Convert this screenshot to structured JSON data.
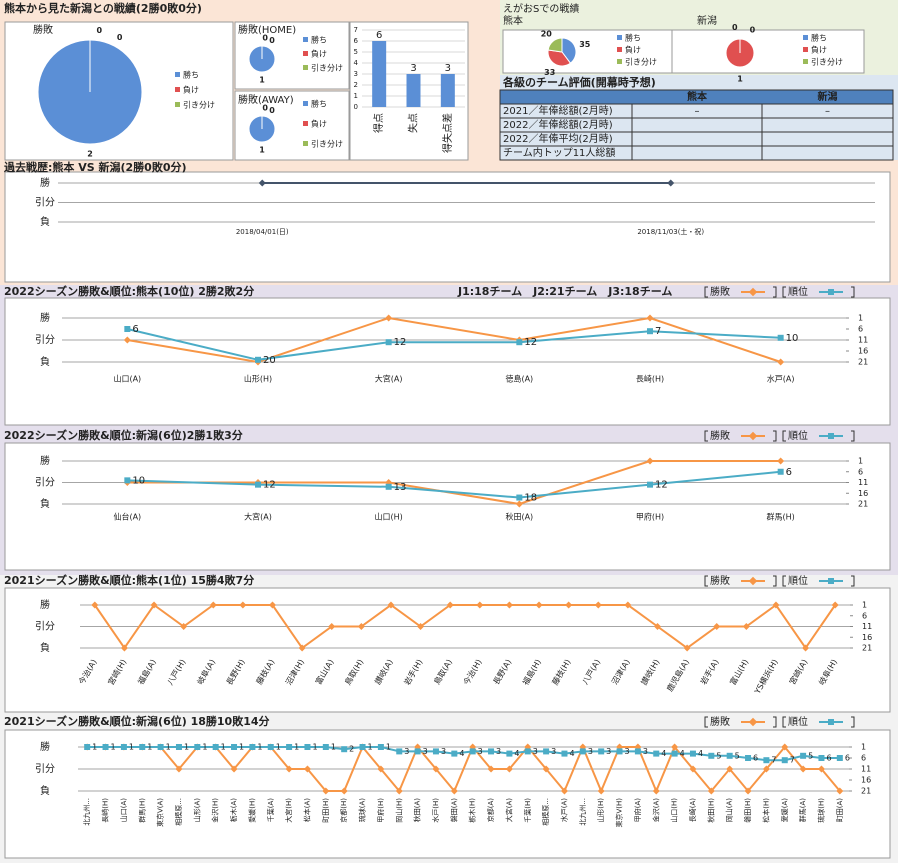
{
  "section_titles": {
    "record": "熊本から見た新潟との戦績(2勝0敗0分)",
    "egao": "えがおSでの戦績"
  },
  "table": {
    "title": "各級のチーム評価(開幕時予想)",
    "columns": [
      "熊本",
      "新潟"
    ],
    "rows": [
      [
        "2021／年俸総額(2月時)",
        "–",
        "–"
      ],
      [
        "2022／年俸総額(2月時)"
      ],
      [
        "2022／年俸平均(2月時)"
      ],
      [
        "チーム内トップ11人総額"
      ]
    ]
  },
  "chart_data": [
    {
      "type": "pie",
      "title": "勝敗",
      "categories": [
        "勝ち",
        "負け",
        "引き分け"
      ],
      "values": [
        2,
        0,
        0
      ],
      "colors": [
        "#5b8fd6",
        "#e05050",
        "#9bbb59"
      ]
    },
    {
      "type": "pie",
      "title": "勝敗(HOME)",
      "categories": [
        "勝ち",
        "負け",
        "引き分け"
      ],
      "values": [
        1,
        0,
        0
      ],
      "colors": [
        "#5b8fd6",
        "#e05050",
        "#9bbb59"
      ]
    },
    {
      "type": "pie",
      "title": "勝敗(AWAY)",
      "categories": [
        "勝ち",
        "負け",
        "引き分け"
      ],
      "values": [
        1,
        0,
        0
      ],
      "colors": [
        "#5b8fd6",
        "#e05050",
        "#9bbb59"
      ]
    },
    {
      "type": "bar",
      "categories": [
        "得点",
        "失点",
        "得失点差"
      ],
      "values": [
        6,
        3,
        3
      ],
      "color": "#5b8fd6",
      "ylim": [
        0,
        7
      ],
      "yticks": [
        0,
        1,
        2,
        3,
        4,
        5,
        6,
        7
      ],
      "grid": true
    },
    {
      "type": "pie",
      "title": "熊本",
      "categories": [
        "勝ち",
        "負け",
        "引き分け"
      ],
      "values": [
        35,
        33,
        20
      ],
      "colors": [
        "#5b8fd6",
        "#e05050",
        "#9bbb59"
      ]
    },
    {
      "type": "pie",
      "title": "新潟",
      "categories": [
        "勝ち",
        "負け",
        "引き分け"
      ],
      "values": [
        0,
        1,
        0
      ],
      "colors": [
        "#5b8fd6",
        "#e05050",
        "#9bbb59"
      ]
    },
    {
      "type": "line",
      "title": "過去戦歴:熊本 VS 新潟(2勝0敗0分)",
      "categories": [
        "2018/04/01(日)",
        "2018/11/03(土・祝)"
      ],
      "ylim": [
        -1,
        1
      ],
      "yticks": [
        {
          "value": 1,
          "label": "勝"
        },
        {
          "value": 0,
          "label": "引分"
        },
        {
          "value": -1,
          "label": "負"
        }
      ],
      "series": [
        {
          "color": "#44546a",
          "values": [
            1,
            1
          ]
        }
      ]
    },
    {
      "type": "line",
      "title": "2022シーズン勝敗&順位:熊本(10位) 2勝2敗2分",
      "note": "J1:18チーム　J2:21チーム　J3:18チーム",
      "categories": [
        "山口(A)",
        "山形(H)",
        "大宮(A)",
        "徳島(A)",
        "長崎(H)",
        "水戸(A)"
      ],
      "ylim": [
        -1,
        1
      ],
      "yticks": [
        {
          "value": 1,
          "label": "勝"
        },
        {
          "value": 0,
          "label": "引分"
        },
        {
          "value": -1,
          "label": "負"
        }
      ],
      "y2lim": [
        21,
        1
      ],
      "y2ticks": [
        1,
        6,
        11,
        16,
        21
      ],
      "series": [
        {
          "name": "勝敗",
          "color": "#f79646",
          "values": [
            0,
            -1,
            1,
            0,
            1,
            -1
          ]
        },
        {
          "name": "順位",
          "color": "#4bacc6",
          "axis": "y2",
          "values": [
            6,
            20,
            12,
            12,
            7,
            10
          ]
        }
      ]
    },
    {
      "type": "line",
      "title": "2022シーズン勝敗&順位:新潟(6位)2勝1敗3分",
      "categories": [
        "仙台(A)",
        "大宮(A)",
        "山口(H)",
        "秋田(A)",
        "甲府(H)",
        "群馬(H)"
      ],
      "ylim": [
        -1,
        1
      ],
      "yticks": [
        {
          "value": 1,
          "label": "勝"
        },
        {
          "value": 0,
          "label": "引分"
        },
        {
          "value": -1,
          "label": "負"
        }
      ],
      "y2lim": [
        21,
        1
      ],
      "y2ticks": [
        1,
        6,
        11,
        16,
        21
      ],
      "series": [
        {
          "name": "勝敗",
          "color": "#f79646",
          "values": [
            0,
            0,
            0,
            -1,
            1,
            1
          ]
        },
        {
          "name": "順位",
          "color": "#4bacc6",
          "axis": "y2",
          "values": [
            10,
            12,
            13,
            18,
            12,
            6
          ]
        }
      ]
    },
    {
      "type": "line",
      "title": "2021シーズン勝敗&順位:熊本(1位) 15勝4敗7分",
      "categories": [
        "今治(A)",
        "宮崎(H)",
        "福島(A)",
        "八戸(H)",
        "岐阜(A)",
        "長野(H)",
        "藤枝(A)",
        "沼津(H)",
        "富山(A)",
        "鳥取(H)",
        "讃岐(A)",
        "岩手(H)",
        "鳥取(A)",
        "今治(H)",
        "長野(A)",
        "福島(H)",
        "藤枝(H)",
        "八戸(A)",
        "沼津(A)",
        "讃岐(H)",
        "鹿児島(A)",
        "岩手(A)",
        "富山(H)",
        "YS横浜(H)",
        "宮崎(A)",
        "岐阜(H)"
      ],
      "ylim": [
        -1,
        1
      ],
      "yticks": [
        {
          "value": 1,
          "label": "勝"
        },
        {
          "value": 0,
          "label": "引分"
        },
        {
          "value": -1,
          "label": "負"
        }
      ],
      "y2lim": [
        21,
        1
      ],
      "y2ticks": [
        1,
        6,
        11,
        16,
        21
      ],
      "series": [
        {
          "name": "勝敗",
          "color": "#f79646",
          "values": [
            1,
            -1,
            1,
            0,
            1,
            1,
            1,
            -1,
            0,
            0,
            1,
            0,
            1,
            1,
            1,
            1,
            1,
            1,
            1,
            0,
            -1,
            0,
            0,
            1,
            -1,
            1
          ]
        },
        {
          "name": "順位",
          "color": "#4bacc6",
          "axis": "y2",
          "values": [
            null,
            null,
            null,
            null,
            null,
            null,
            null,
            null,
            null,
            null,
            null,
            null,
            null,
            null,
            null,
            null,
            null,
            null,
            null,
            null,
            null,
            null,
            null,
            null,
            null,
            null
          ]
        }
      ]
    },
    {
      "type": "line",
      "title": "2021シーズン勝敗&順位:新潟(6位) 18勝10敗14分",
      "categories": [
        "北九州...",
        "長崎(H)",
        "山口(A)",
        "群馬(H)",
        "東京V(A)",
        "相模原...",
        "山形(A)",
        "金沢(H)",
        "栃木(A)",
        "愛媛(H)",
        "千葉(A)",
        "大宮(H)",
        "松本(A)",
        "町田(H)",
        "京都(H)",
        "琉球(A)",
        "甲府(H)",
        "岡山(H)",
        "秋田(A)",
        "水戸(H)",
        "磐田(A)",
        "栃木(H)",
        "京都(A)",
        "大宮(A)",
        "千葉(H)",
        "相模原...",
        "水戸(A)",
        "北九州...",
        "山形(H)",
        "東京V(H)",
        "甲府(A)",
        "金沢(A)",
        "山口(H)",
        "長崎(A)",
        "秋田(H)",
        "岡山(A)",
        "磐田(H)",
        "松本(H)",
        "愛媛(A)",
        "群馬(A)",
        "琉球(H)",
        "町田(A)"
      ],
      "ylim": [
        -1,
        1
      ],
      "yticks": [
        {
          "value": 1,
          "label": "勝"
        },
        {
          "value": 0,
          "label": "引分"
        },
        {
          "value": -1,
          "label": "負"
        }
      ],
      "y2lim": [
        21,
        1
      ],
      "y2ticks": [
        1,
        6,
        11,
        16,
        21
      ],
      "series": [
        {
          "name": "勝敗",
          "color": "#f79646",
          "values": [
            1,
            1,
            1,
            1,
            1,
            0,
            1,
            1,
            0,
            1,
            1,
            0,
            0,
            -1,
            -1,
            1,
            0,
            -1,
            1,
            0,
            -1,
            1,
            0,
            0,
            1,
            0,
            -1,
            1,
            -1,
            1,
            1,
            -1,
            1,
            0,
            -1,
            0,
            -1,
            0,
            1,
            0,
            0,
            -1
          ]
        },
        {
          "name": "順位",
          "color": "#4bacc6",
          "axis": "y2",
          "values": [
            1,
            1,
            1,
            1,
            1,
            1,
            1,
            1,
            1,
            1,
            1,
            1,
            1,
            1,
            2,
            1,
            1,
            3,
            3,
            3,
            4,
            3,
            3,
            4,
            3,
            3,
            4,
            3,
            3,
            3,
            3,
            4,
            4,
            4,
            5,
            5,
            6,
            7,
            7,
            5,
            6,
            6
          ]
        }
      ]
    }
  ]
}
